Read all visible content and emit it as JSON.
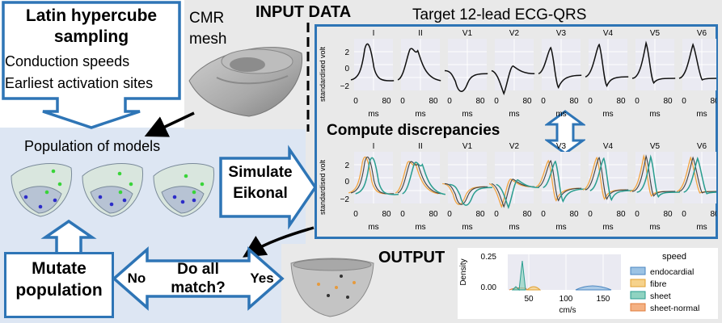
{
  "lhs": {
    "title_l1": "Latin hypercube",
    "title_l2": "sampling",
    "item1": "Conduction speeds",
    "item2": "Earliest activation sites"
  },
  "cmr": {
    "l1": "CMR",
    "l2": "mesh"
  },
  "input_title": "INPUT DATA",
  "target_title": "Target 12-lead ECG-QRS",
  "leads": [
    "I",
    "II",
    "V1",
    "V2",
    "V3",
    "V4",
    "V5",
    "V6"
  ],
  "ylabel": "standardised volt",
  "xlabel": "ms",
  "xticks": [
    "0",
    "80"
  ],
  "yticks": [
    "2",
    "0",
    "−2"
  ],
  "yticks_bottom": [
    "2",
    "0",
    "−2"
  ],
  "compute_title": "Compute discrepancies",
  "population_title": "Population of models",
  "simulate": {
    "l1": "Simulate",
    "l2": "Eikonal"
  },
  "mutate": {
    "l1": "Mutate",
    "l2": "population"
  },
  "decision": {
    "l1": "Do all",
    "l2": "match?"
  },
  "no_label": "No",
  "yes_label": "Yes",
  "output_title": "OUTPUT",
  "density": {
    "ylabel": "Density",
    "yticks": [
      "0.25",
      "0.00"
    ],
    "xticks": [
      "50",
      "100",
      "150"
    ],
    "xlabel": "cm/s",
    "legend_title": "speed",
    "legend": [
      "endocardial",
      "fibre",
      "sheet",
      "sheet-normal"
    ]
  },
  "colors": {
    "panel_blue": "#dde6f3",
    "panel_gray": "#e9e9e9",
    "accent": "#2e75b6",
    "sim_green": "#2a9d8f",
    "sim_orange": "#f2a541",
    "endocardial": "#9cc3e4",
    "fibre": "#f6d28b",
    "sheet": "#8fd3c1",
    "sheet_normal": "#f4b183"
  }
}
